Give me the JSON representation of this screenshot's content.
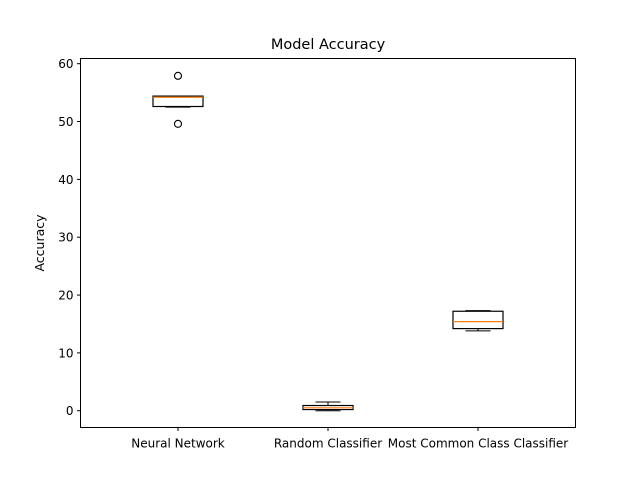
{
  "chart_data": {
    "type": "box",
    "title": "Model Accuracy",
    "xlabel": "",
    "ylabel": "Accuracy",
    "categories": [
      "Neural Network",
      "Random Classifier",
      "Most Common Class Classifier"
    ],
    "ylim": [
      -2.9,
      60.9
    ],
    "yticks": [
      0,
      10,
      20,
      30,
      40,
      50,
      60
    ],
    "grid": false,
    "boxes": [
      {
        "category": "Neural Network",
        "whisker_low": 52.5,
        "q1": 52.6,
        "median": 54.2,
        "q3": 54.4,
        "whisker_high": 54.4,
        "fliers": [
          49.6,
          57.9
        ]
      },
      {
        "category": "Random Classifier",
        "whisker_low": 0.0,
        "q1": 0.2,
        "median": 0.5,
        "q3": 0.9,
        "whisker_high": 1.5,
        "fliers": []
      },
      {
        "category": "Most Common Class Classifier",
        "whisker_low": 13.8,
        "q1": 14.2,
        "median": 15.4,
        "q3": 17.2,
        "whisker_high": 17.3,
        "fliers": []
      }
    ],
    "colors": {
      "box": "#000000",
      "median": "#ff7f0e",
      "flier": "#000000"
    }
  }
}
